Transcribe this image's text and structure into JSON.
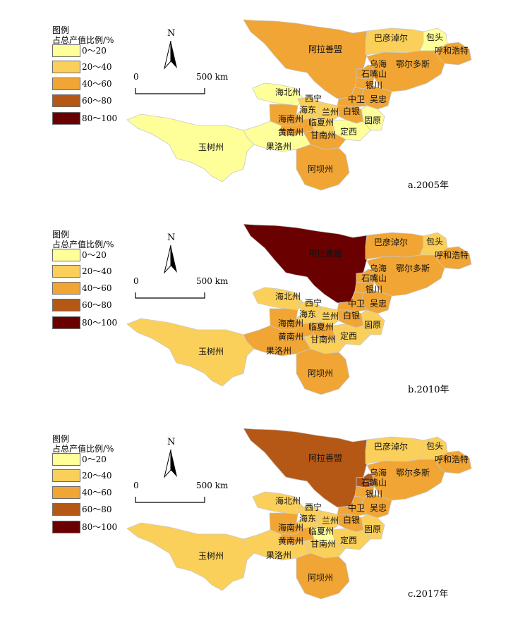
{
  "legend": {
    "title_line1": "图例",
    "title_line2": "占总产值比例/%",
    "classes": [
      {
        "label": "0～20",
        "color": "#ffff99"
      },
      {
        "label": "20～40",
        "color": "#fbd05a"
      },
      {
        "label": "40～60",
        "color": "#f0a534"
      },
      {
        "label": "60～80",
        "color": "#b55816"
      },
      {
        "label": "80～100",
        "color": "#6b0000"
      }
    ]
  },
  "north_label": "N",
  "scale": {
    "start": "0",
    "end": "500 km"
  },
  "regions": [
    "阿拉善盟",
    "巴彦淖尔",
    "包头",
    "呼和浩特",
    "乌海",
    "鄂尔多斯",
    "石嘴山",
    "银川",
    "吴忠",
    "中卫",
    "固原",
    "白银",
    "兰州",
    "定西",
    "临夏州",
    "甘南州",
    "阿坝州",
    "海北州",
    "西宁",
    "海东",
    "海南州",
    "黄南州",
    "果洛州",
    "玉树州"
  ],
  "panels": [
    {
      "caption": "a.2005年",
      "classes": {
        "阿拉善盟": 2,
        "巴彦淖尔": 1,
        "包头": 0,
        "呼和浩特": 2,
        "乌海": 2,
        "鄂尔多斯": 2,
        "石嘴山": 2,
        "银川": 2,
        "吴忠": 2,
        "中卫": 2,
        "固原": 0,
        "白银": 2,
        "兰州": 1,
        "定西": 0,
        "临夏州": 1,
        "甘南州": 2,
        "阿坝州": 2,
        "海北州": 0,
        "西宁": 1,
        "海东": 1,
        "海南州": 2,
        "黄南州": 2,
        "果洛州": 0,
        "玉树州": 0
      }
    },
    {
      "caption": "b.2010年",
      "classes": {
        "阿拉善盟": 4,
        "巴彦淖尔": 2,
        "包头": 1,
        "呼和浩特": 2,
        "乌海": 2,
        "鄂尔多斯": 2,
        "石嘴山": 2,
        "银川": 2,
        "吴忠": 2,
        "中卫": 2,
        "固原": 1,
        "白银": 2,
        "兰州": 1,
        "定西": 1,
        "临夏州": 2,
        "甘南州": 1,
        "阿坝州": 2,
        "海北州": 1,
        "西宁": 1,
        "海东": 1,
        "海南州": 2,
        "黄南州": 2,
        "果洛州": 2,
        "玉树州": 1
      }
    },
    {
      "caption": "c.2017年",
      "classes": {
        "阿拉善盟": 3,
        "巴彦淖尔": 1,
        "包头": 1,
        "呼和浩特": 2,
        "乌海": 3,
        "鄂尔多斯": 2,
        "石嘴山": 3,
        "银川": 2,
        "吴忠": 2,
        "中卫": 2,
        "固原": 1,
        "白银": 2,
        "兰州": 1,
        "定西": 1,
        "临夏州": 0,
        "甘南州": 1,
        "阿坝州": 2,
        "海北州": 1,
        "西宁": 1,
        "海东": 1,
        "海南州": 2,
        "黄南州": 2,
        "果洛州": 1,
        "玉树州": 1
      }
    }
  ]
}
